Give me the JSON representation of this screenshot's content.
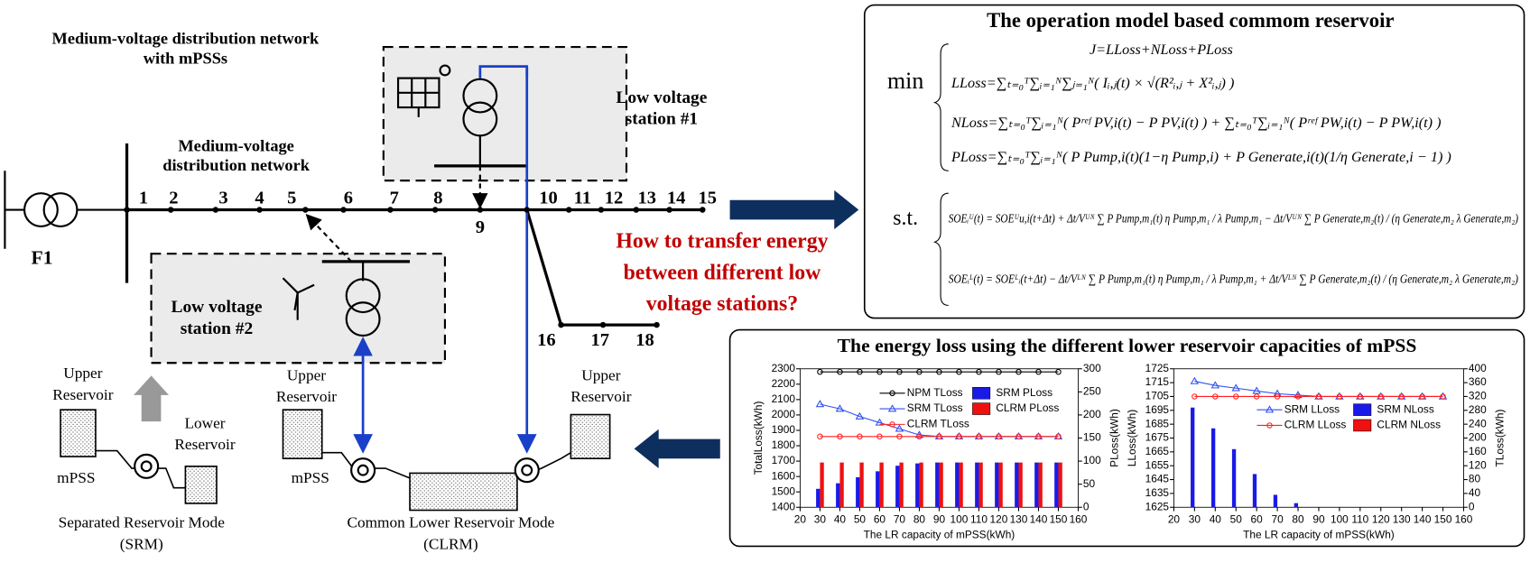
{
  "network": {
    "title_lines": [
      "Medium-voltage distribution network",
      "with mPSSs"
    ],
    "mv_label_lines": [
      "Medium-voltage",
      "distribution network"
    ],
    "source": "F1",
    "nodes": [
      "1",
      "2",
      "3",
      "4",
      "5",
      "6",
      "7",
      "8",
      "9",
      "10",
      "11",
      "12",
      "13",
      "14",
      "15",
      "16",
      "17",
      "18"
    ],
    "station1_lines": [
      "Low voltage",
      "station #1"
    ],
    "station2_lines": [
      "Low voltage",
      "station #2"
    ],
    "question_lines": [
      "How to transfer energy",
      "between different low",
      "voltage stations?"
    ]
  },
  "reservoirs": {
    "upper": [
      "Upper",
      "Reservoir"
    ],
    "lower": [
      "Lower",
      "Reservoir"
    ],
    "mpss": "mPSS",
    "srm_lines": [
      "Separated Reservoir Mode",
      "(SRM)"
    ],
    "clrm_lines": [
      "Common Lower Reservoir Mode",
      "(CLRM)"
    ]
  },
  "model": {
    "title": "The operation model based commom reservoir",
    "min": "min",
    "st": "s.t.",
    "objective": [
      "J=LLoss+NLoss+PLoss",
      "LLoss=∑ₜ₌₀ᵀ∑ᵢ₌₁ᴺ∑ⱼ₌₁ᴺ( Iᵢ,ⱼ(t) × √(R²ᵢ,ⱼ + X²ᵢ,ⱼ) )",
      "NLoss=∑ₜ₌₀ᵀ∑ᵢ₌₁ᴺ( Pʳᵉᶠ PV,i(t) − P PV,i(t) ) + ∑ₜ₌₀ᵀ∑ᵢ₌₁ᴺ( Pʳᵉᶠ PW,i(t) − P PW,i(t) )",
      "PLoss=∑ₜ₌₀ᵀ∑ᵢ₌₁ᴺ( P Pump,i(t)(1−η Pump,i) + P Generate,i(t)(1/η Generate,i − 1) )"
    ],
    "constraints": [
      "SOEᵢᵁ(t) = SOEᵁu,i(t+Δt) + Δt/Vᵁᴺ ∑ P Pump,m₁(t) η Pump,m₁ / λ Pump,m₁ − Δt/Vᵁᴺ ∑ P Generate,m₂(t) / (η Generate,m₂ λ Generate,m₂)",
      "SOEᵢᴸ(t) = SOEᴸᵢ(t+Δt) − Δt/Vᴸᴺ ∑ P Pump,m₁(t) η Pump,m₁ / λ Pump,m₁ + Δt/Vᴸᴺ ∑ P Generate,m₂(t) / (η Generate,m₂ λ Generate,m₂)"
    ]
  },
  "results_title": "The energy loss using the different lower reservoir capacities of mPSS",
  "chart_data": [
    {
      "type": "combo",
      "x": [
        30,
        40,
        50,
        60,
        70,
        80,
        90,
        100,
        110,
        120,
        130,
        140,
        150
      ],
      "xlim": [
        20,
        160
      ],
      "xticks": [
        20,
        30,
        40,
        50,
        60,
        70,
        80,
        90,
        100,
        110,
        120,
        130,
        140,
        150,
        160
      ],
      "ylim": [
        1400,
        2300
      ],
      "yticks": [
        1400,
        1500,
        1600,
        1700,
        1800,
        1900,
        2000,
        2100,
        2200,
        2300
      ],
      "y2lim": [
        0,
        300
      ],
      "y2ticks": [
        0,
        50,
        100,
        150,
        200,
        250,
        300
      ],
      "ylabel": "TotalLoss(kWh)",
      "y2label": "PLoss(kWh)",
      "xlabel": "The LR capacity of mPSS(kWh)",
      "legend": "upper right",
      "series": [
        {
          "name": "NPM TLoss",
          "type": "line",
          "marker": "circle",
          "color": "#000000",
          "values": [
            2280,
            2280,
            2280,
            2280,
            2280,
            2280,
            2280,
            2280,
            2280,
            2280,
            2280,
            2280,
            2280
          ]
        },
        {
          "name": "SRM TLoss",
          "type": "line",
          "marker": "triangle",
          "color": "#3050f0",
          "values": [
            2070,
            2040,
            1990,
            1950,
            1910,
            1870,
            1860,
            1860,
            1860,
            1860,
            1860,
            1860,
            1860
          ]
        },
        {
          "name": "CLRM TLoss",
          "type": "line",
          "marker": "circle",
          "color": "#ff2020",
          "values": [
            1860,
            1860,
            1860,
            1860,
            1860,
            1860,
            1860,
            1860,
            1860,
            1860,
            1860,
            1860,
            1860
          ]
        },
        {
          "name": "SRM PLoss",
          "type": "bar",
          "axis": "y2",
          "color": "#1a1ae6",
          "values": [
            40,
            52,
            65,
            78,
            90,
            95,
            97,
            97,
            97,
            97,
            97,
            97,
            97
          ]
        },
        {
          "name": "CLRM PLoss",
          "type": "bar",
          "axis": "y2",
          "color": "#ee1111",
          "values": [
            97,
            97,
            97,
            97,
            97,
            97,
            97,
            97,
            97,
            97,
            97,
            97,
            97
          ]
        }
      ]
    },
    {
      "type": "combo",
      "x": [
        30,
        40,
        50,
        60,
        70,
        80,
        90,
        100,
        110,
        120,
        130,
        140,
        150
      ],
      "xlim": [
        20,
        160
      ],
      "xticks": [
        20,
        30,
        40,
        50,
        60,
        70,
        80,
        90,
        100,
        110,
        120,
        130,
        140,
        150,
        160
      ],
      "ylim": [
        1625,
        1725
      ],
      "yticks": [
        1625,
        1635,
        1645,
        1655,
        1665,
        1675,
        1685,
        1695,
        1705,
        1715,
        1725
      ],
      "y2lim": [
        0,
        400
      ],
      "y2ticks": [
        0,
        40,
        80,
        120,
        160,
        200,
        240,
        280,
        320,
        360,
        400
      ],
      "ylabel": "LLoss(kWh)",
      "y2label": "TLoss(kWh)",
      "xlabel": "The LR capacity of mPSS(kWh)",
      "legend": "center right",
      "series": [
        {
          "name": "SRM LLoss",
          "type": "line",
          "marker": "triangle",
          "color": "#3050f0",
          "values": [
            1716,
            1713,
            1711,
            1709,
            1707,
            1706,
            1705,
            1705,
            1705,
            1705,
            1705,
            1705,
            1705
          ]
        },
        {
          "name": "CLRM LLoss",
          "type": "line",
          "marker": "circle",
          "color": "#ff2020",
          "values": [
            1705,
            1705,
            1705,
            1705,
            1705,
            1705,
            1705,
            1705,
            1705,
            1705,
            1705,
            1705,
            1705
          ]
        },
        {
          "name": "SRM NLoss",
          "type": "bar",
          "axis": "y2",
          "color": "#1a1ae6",
          "values": [
            288,
            228,
            168,
            96,
            36,
            12,
            0,
            0,
            0,
            0,
            0,
            0,
            0
          ]
        },
        {
          "name": "CLRM NLoss",
          "type": "bar",
          "axis": "y2",
          "color": "#ee1111",
          "values": [
            0,
            0,
            0,
            0,
            0,
            0,
            0,
            0,
            0,
            0,
            0,
            0,
            0
          ]
        }
      ]
    }
  ]
}
